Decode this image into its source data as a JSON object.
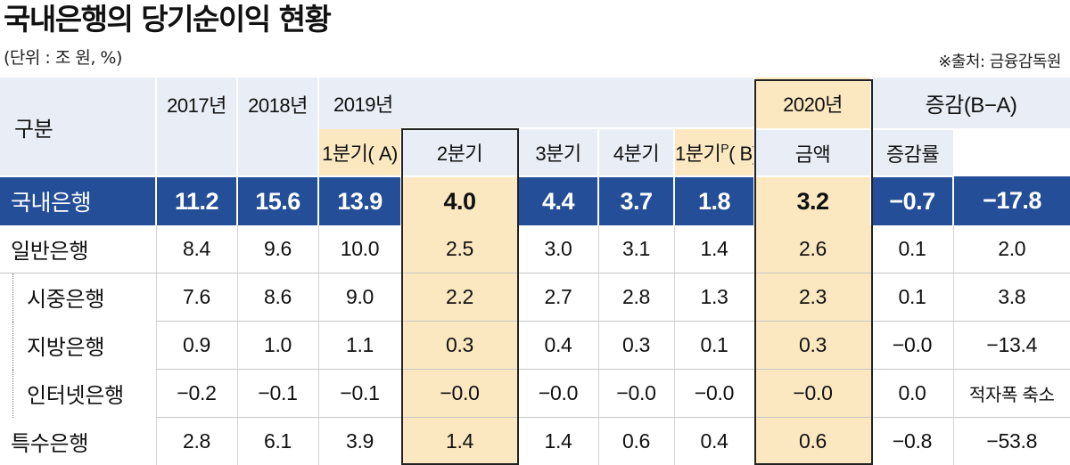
{
  "title": "국내은행의 당기순이익 현황",
  "unit_note": "(단위 : 조 원, %)",
  "source_note": "※출처: 금융감독원",
  "header": {
    "category": "구분",
    "y2017": "2017년",
    "y2018": "2018년",
    "y2019": "2019년",
    "y2020": "2020년",
    "change": "증감(B−A)",
    "q1a": "1분기( A)",
    "q2": "2분기",
    "q3": "3분기",
    "q4": "4분기",
    "q1b_prefix": "1분기",
    "q1b_sup": "P",
    "q1b_suffix": "( B)",
    "amount": "금액",
    "rate": "증감률"
  },
  "rows": [
    {
      "name": "국내은행",
      "v2017": "11.2",
      "v2018": "15.6",
      "v2019": "13.9",
      "q1": "4.0",
      "q2": "4.4",
      "q3": "3.7",
      "q4": "1.8",
      "q1_2020": "3.2",
      "amount": "−0.7",
      "rate": "−17.8"
    },
    {
      "name": "일반은행",
      "v2017": "8.4",
      "v2018": "9.6",
      "v2019": "10.0",
      "q1": "2.5",
      "q2": "3.0",
      "q3": "3.1",
      "q4": "1.4",
      "q1_2020": "2.6",
      "amount": "0.1",
      "rate": "2.0"
    },
    {
      "name": "시중은행",
      "v2017": "7.6",
      "v2018": "8.6",
      "v2019": "9.0",
      "q1": "2.2",
      "q2": "2.7",
      "q3": "2.8",
      "q4": "1.3",
      "q1_2020": "2.3",
      "amount": "0.1",
      "rate": "3.8"
    },
    {
      "name": "지방은행",
      "v2017": "0.9",
      "v2018": "1.0",
      "v2019": "1.1",
      "q1": "0.3",
      "q2": "0.4",
      "q3": "0.3",
      "q4": "0.1",
      "q1_2020": "0.3",
      "amount": "−0.0",
      "rate": "−13.4"
    },
    {
      "name": "인터넷은행",
      "v2017": "−0.2",
      "v2018": "−0.1",
      "v2019": "−0.1",
      "q1": "−0.0",
      "q2": "−0.0",
      "q3": "−0.0",
      "q4": "−0.0",
      "q1_2020": "−0.0",
      "amount": "0.0",
      "rate": "적자폭 축소"
    },
    {
      "name": "특수은행",
      "v2017": "2.8",
      "v2018": "6.1",
      "v2019": "3.9",
      "q1": "1.4",
      "q2": "1.4",
      "q3": "0.6",
      "q4": "0.4",
      "q1_2020": "0.6",
      "amount": "−0.8",
      "rate": "−53.8"
    }
  ],
  "colors": {
    "header_bg": "#e9edf5",
    "total_row_bg": "#244e97",
    "highlight_bg": "#fbe7c0"
  }
}
